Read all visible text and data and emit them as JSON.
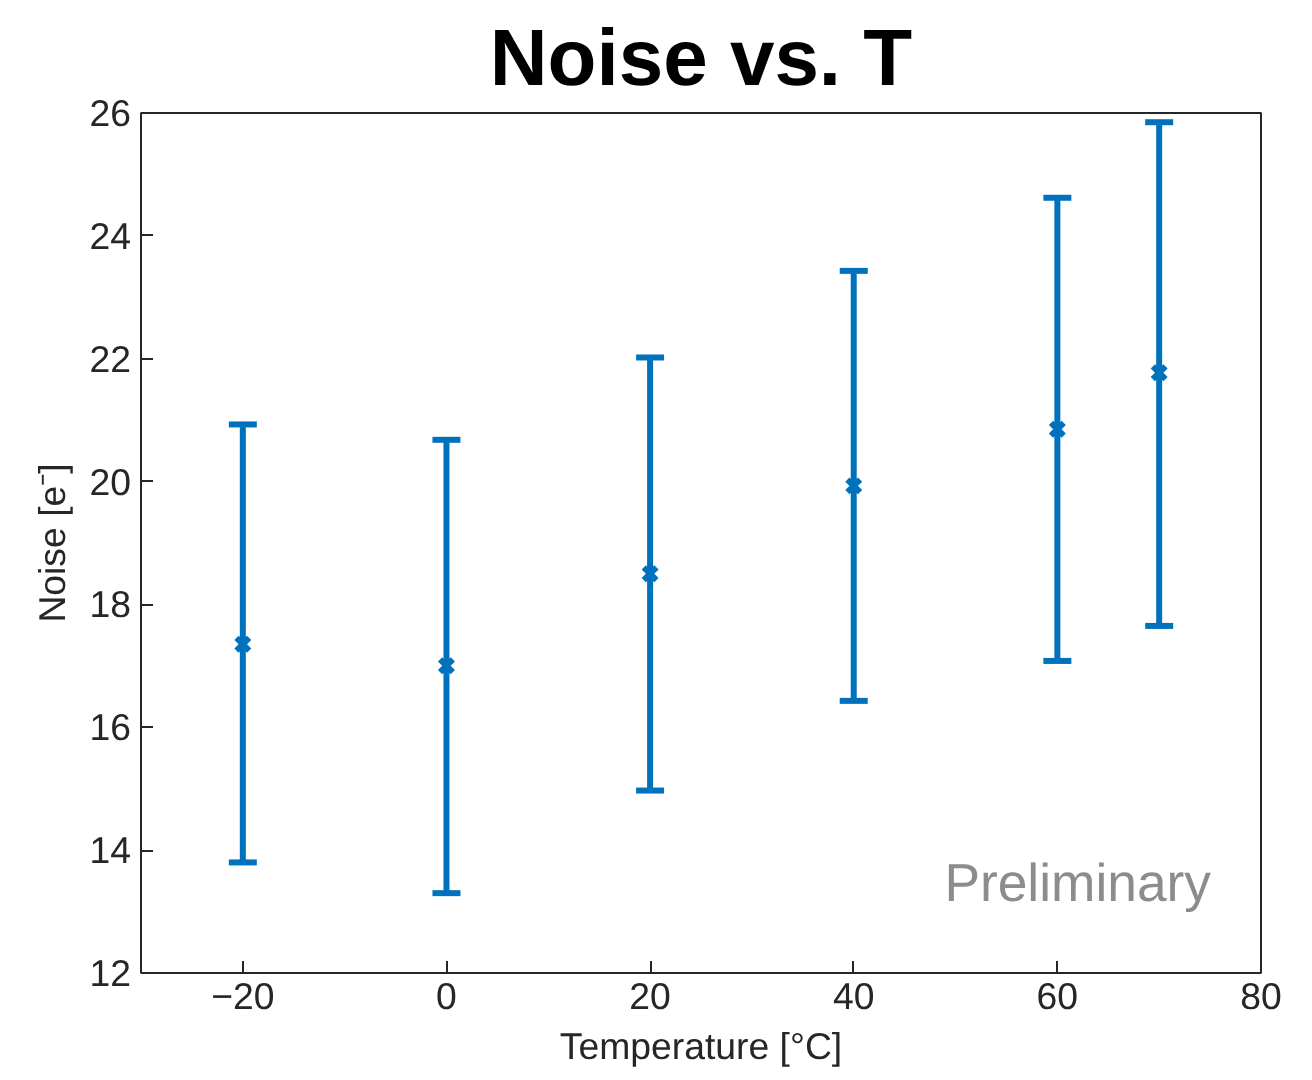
{
  "chart_data": {
    "type": "scatter",
    "title": "Noise vs. T",
    "xlabel": "Temperature [°C]",
    "ylabel": "Noise [e⁻]",
    "x": [
      -20,
      0,
      20,
      40,
      60,
      70
    ],
    "series": [
      {
        "color": "#0072bd",
        "values": [
          17.35,
          17.0,
          18.5,
          19.93,
          20.85,
          21.77
        ],
        "errors": [
          [
            13.8,
            20.93
          ],
          [
            13.3,
            20.68
          ],
          [
            14.97,
            22.02
          ],
          [
            16.43,
            23.43
          ],
          [
            17.08,
            24.62
          ],
          [
            17.65,
            25.85
          ]
        ]
      }
    ],
    "marker": "cross",
    "xlim": [
      -30,
      80
    ],
    "ylim": [
      12,
      26
    ],
    "xticks": [
      -20,
      0,
      20,
      40,
      60,
      80
    ],
    "yticks": [
      12,
      14,
      16,
      18,
      20,
      22,
      24,
      26
    ],
    "grid": false,
    "annotations": [
      "Preliminary"
    ]
  }
}
